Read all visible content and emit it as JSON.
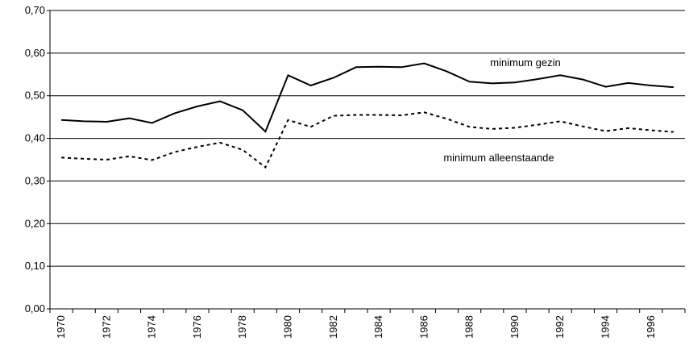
{
  "chart_data": {
    "type": "line",
    "categories": [
      "1970",
      null,
      "1972",
      null,
      "1974",
      null,
      "1976",
      null,
      "1978",
      null,
      "1980",
      null,
      "1982",
      null,
      "1984",
      null,
      "1986",
      null,
      "1988",
      null,
      "1990",
      null,
      "1992",
      null,
      "1994",
      null,
      "1996",
      null
    ],
    "series": [
      {
        "name": "minimum gezin",
        "color": "#000000",
        "style": "solid",
        "values": [
          0.443,
          0.44,
          0.439,
          0.447,
          0.436,
          0.459,
          0.475,
          0.487,
          0.466,
          0.416,
          0.548,
          0.524,
          0.542,
          0.567,
          0.568,
          0.567,
          0.576,
          0.557,
          0.533,
          0.529,
          0.531,
          0.539,
          0.548,
          0.538,
          0.521,
          0.53,
          0.524,
          0.52
        ]
      },
      {
        "name": "minimum alleenstaande",
        "color": "#000000",
        "style": "dashed",
        "values": [
          0.355,
          0.352,
          0.35,
          0.358,
          0.349,
          0.368,
          0.38,
          0.39,
          0.373,
          0.332,
          0.443,
          0.427,
          0.453,
          0.455,
          0.455,
          0.454,
          0.461,
          0.446,
          0.427,
          0.422,
          0.425,
          0.432,
          0.44,
          0.428,
          0.417,
          0.424,
          0.419,
          0.415
        ]
      }
    ],
    "ylim": [
      0,
      0.7
    ],
    "yticks": [
      {
        "value": 0,
        "label": "0,00"
      },
      {
        "value": 0.1,
        "label": "0,10"
      },
      {
        "value": 0.2,
        "label": "0,20"
      },
      {
        "value": 0.3,
        "label": "0,30"
      },
      {
        "value": 0.4,
        "label": "0,40"
      },
      {
        "value": 0.5,
        "label": "0,50"
      },
      {
        "value": 0.6,
        "label": "0,60"
      },
      {
        "value": 0.7,
        "label": "0,70"
      }
    ],
    "grid": true
  }
}
